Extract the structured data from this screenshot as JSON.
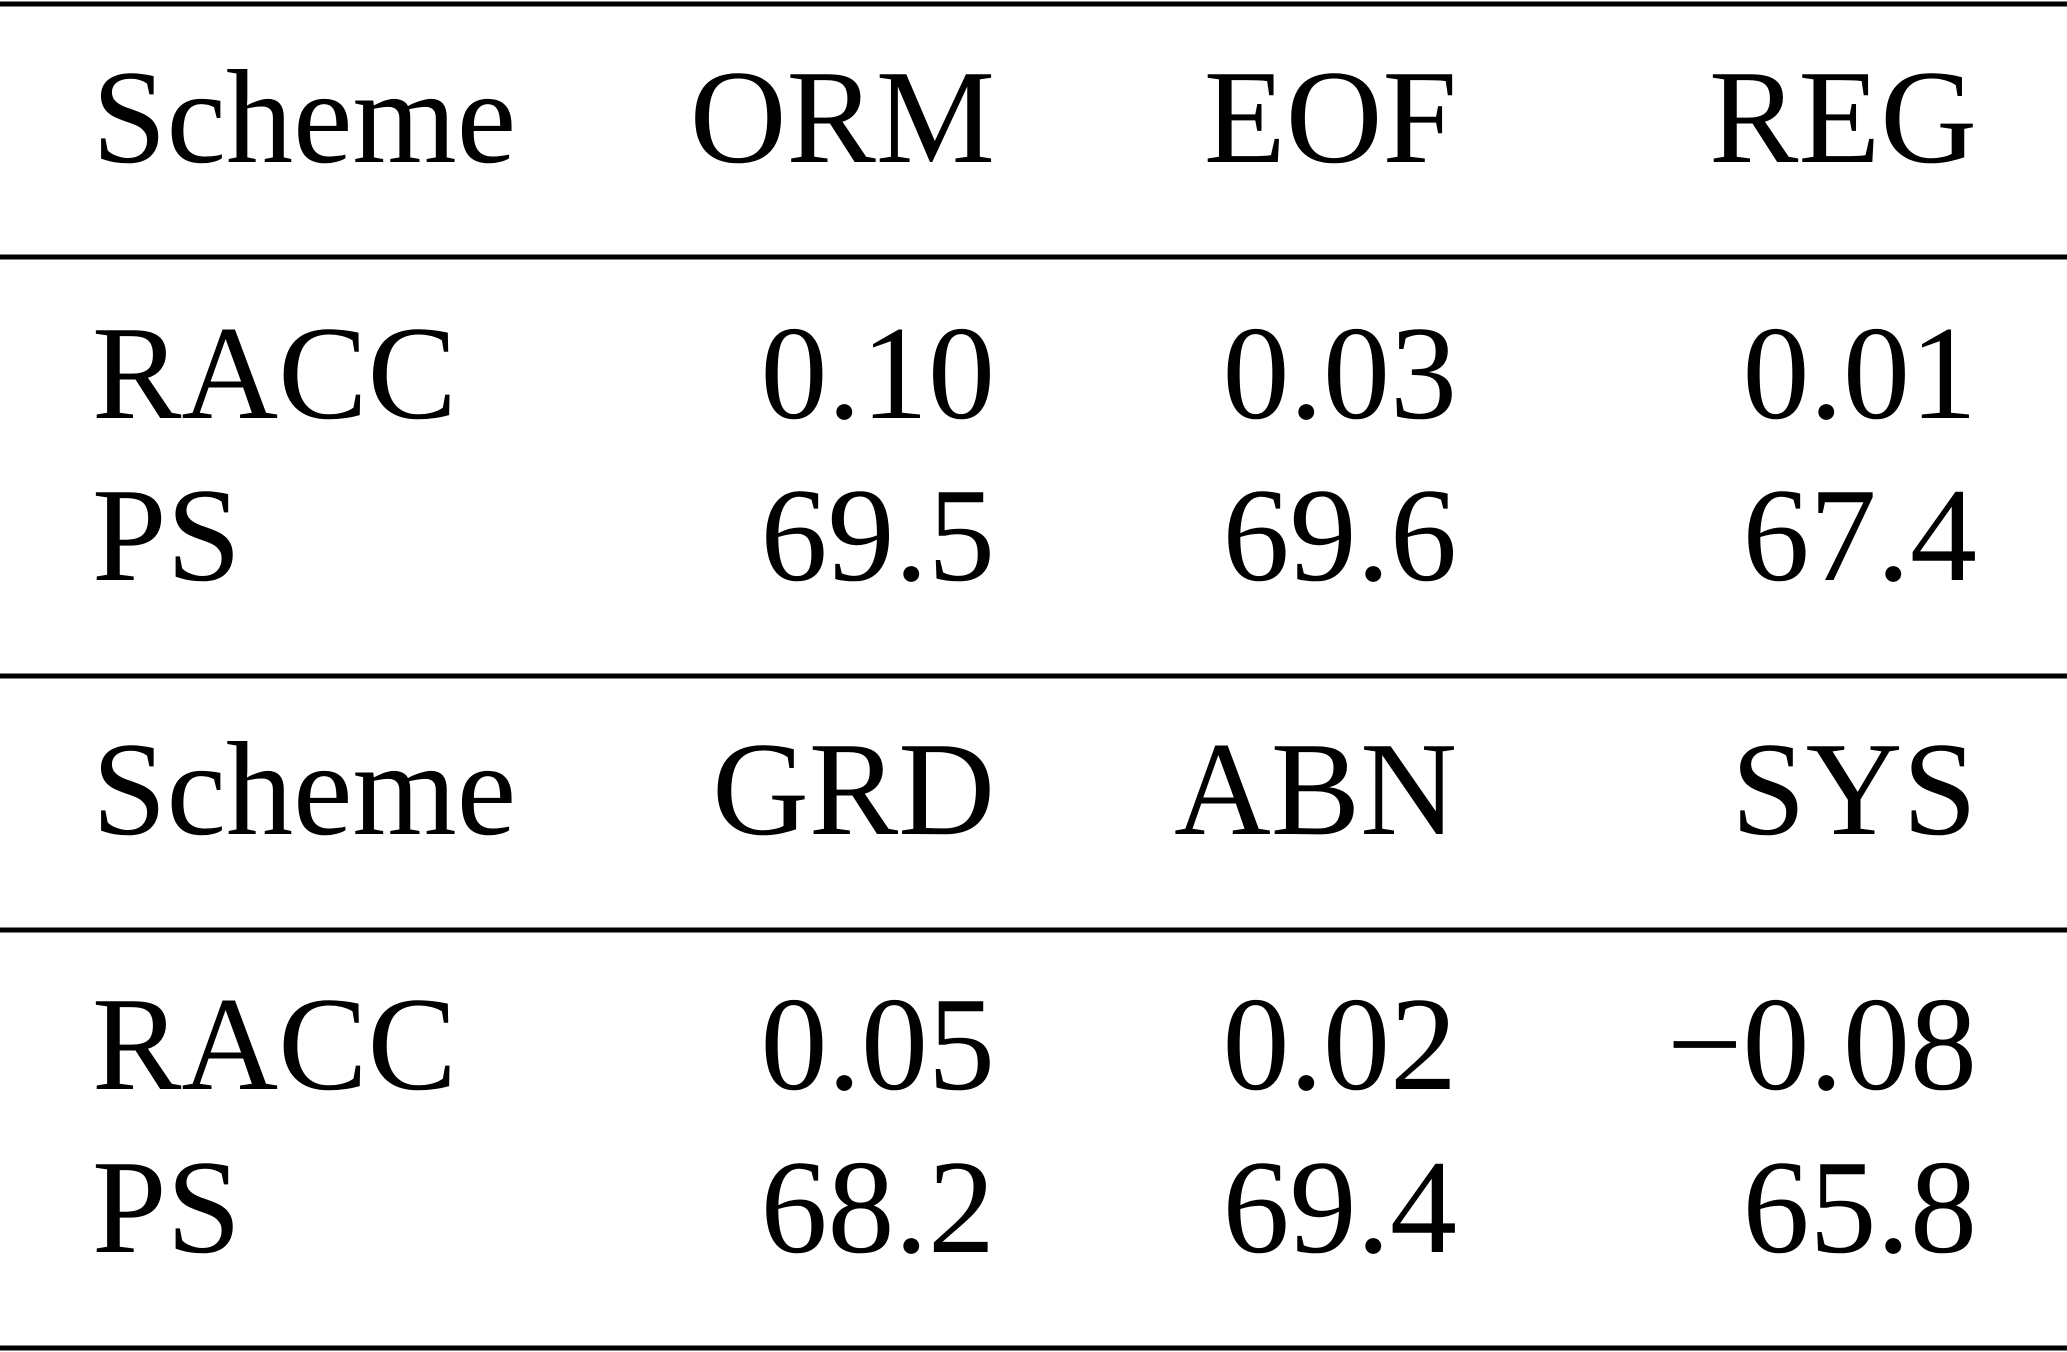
{
  "table": {
    "blocks": [
      {
        "header": [
          "Scheme",
          "ORM",
          "EOF",
          "REG"
        ],
        "rows": [
          [
            "RACC",
            "0.10",
            "0.03",
            "0.01"
          ],
          [
            "PS",
            "69.5",
            "69.6",
            "67.4"
          ]
        ]
      },
      {
        "header": [
          "Scheme",
          "GRD",
          "ABN",
          "SYS"
        ],
        "rows": [
          [
            "RACC",
            "0.05",
            "0.02",
            "−0.08"
          ],
          [
            "PS",
            "68.2",
            "69.4",
            "65.8"
          ]
        ]
      }
    ]
  }
}
